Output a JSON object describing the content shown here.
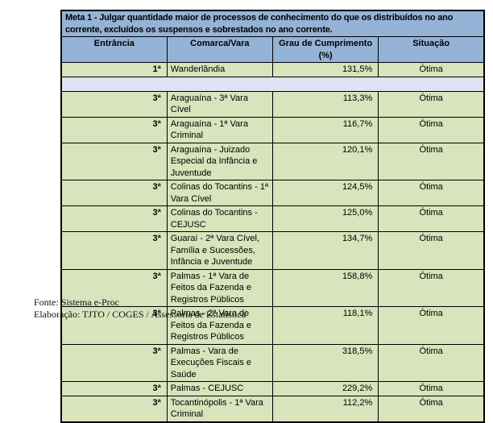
{
  "colors": {
    "header_blue": "#95B3D7",
    "row_green": "#D7E4BC",
    "spacer_lavender": "#DEE3F1",
    "border_black": "#000000"
  },
  "table": {
    "title": "Meta 1 - Julgar quantidade maior de processos de conhecimento do que os distribuídos no ano corrente, excluídos os suspensos e sobrestados no ano corrente.",
    "columns": [
      "Entrância",
      "Comarca/Vara",
      "Grau de Cumprimento (%)",
      "Situação"
    ],
    "rows": [
      {
        "entrancia": "1ª",
        "comarca_vara": "Wanderlândia",
        "grau_cumprimento": "131,5%",
        "situacao": "Ótima"
      },
      {
        "type": "spacer"
      },
      {
        "entrancia": "3ª",
        "comarca_vara": "Araguaína - 3ª Vara Cível",
        "grau_cumprimento": "113,3%",
        "situacao": "Ótima"
      },
      {
        "entrancia": "3ª",
        "comarca_vara": "Araguaína - 1ª Vara Criminal",
        "grau_cumprimento": "116,7%",
        "situacao": "Ótima"
      },
      {
        "entrancia": "3ª",
        "comarca_vara": "Araguaína - Juizado Especial da Infância e Juventude",
        "grau_cumprimento": "120,1%",
        "situacao": "Ótima"
      },
      {
        "entrancia": "3ª",
        "comarca_vara": "Colinas do Tocantins - 1ª Vara Cível",
        "grau_cumprimento": "124,5%",
        "situacao": "Ótima"
      },
      {
        "entrancia": "3ª",
        "comarca_vara": "Colinas do Tocantins - CEJUSC",
        "grau_cumprimento": "125,0%",
        "situacao": "Ótima"
      },
      {
        "entrancia": "3ª",
        "comarca_vara": "Guaraí - 2ª Vara Cível, Família e Sucessões, Infância e Juventude",
        "grau_cumprimento": "134,7%",
        "situacao": "Ótima"
      },
      {
        "entrancia": "3ª",
        "comarca_vara": "Palmas - 1ª Vara de Feitos da Fazenda e Registros Públicos",
        "grau_cumprimento": "158,8%",
        "situacao": "Ótima"
      },
      {
        "entrancia": "3ª",
        "comarca_vara": "Palmas - 2ª Vara de Feitos da Fazenda e Registros Públicos",
        "grau_cumprimento": "118,1%",
        "situacao": "Ótima"
      },
      {
        "entrancia": "3ª",
        "comarca_vara": "Palmas - Vara de Execuções Fiscais e Saúde",
        "grau_cumprimento": "318,5%",
        "situacao": "Ótima"
      },
      {
        "entrancia": "3ª",
        "comarca_vara": "Palmas - CEJUSC",
        "grau_cumprimento": "229,2%",
        "situacao": "Ótima"
      },
      {
        "entrancia": "3ª",
        "comarca_vara": "Tocantinópolis - 1ª Vara Criminal",
        "grau_cumprimento": "112,2%",
        "situacao": "Ótima"
      }
    ]
  },
  "footer": {
    "fonte": "Fonte: Sistema e-Proc",
    "elaboracao": "Elaboração: TJTO / COGES / Assessoria de Estatística"
  }
}
